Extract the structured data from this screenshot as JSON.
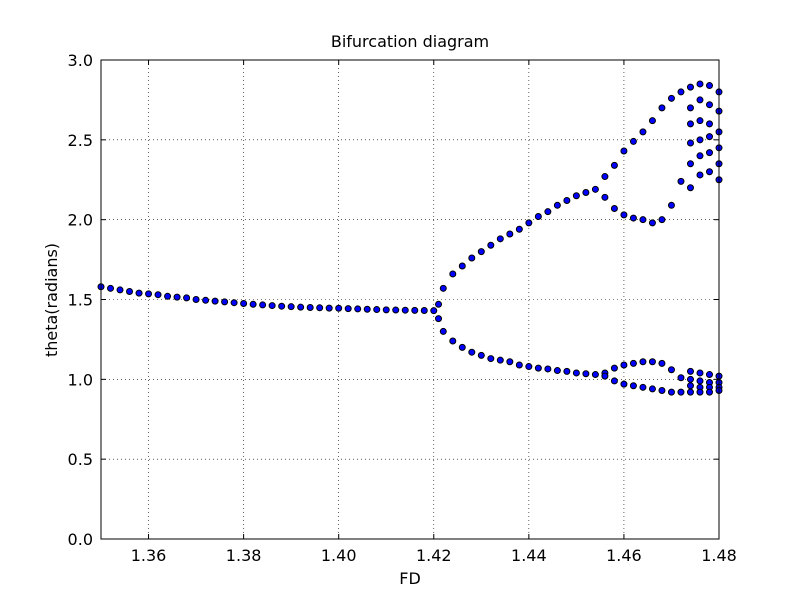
{
  "chart_data": {
    "type": "scatter",
    "title": "Bifurcation diagram",
    "x_label": "FD",
    "y_label": "theta(radians)",
    "xlim": [
      1.35,
      1.48
    ],
    "ylim": [
      0,
      3
    ],
    "xticks": [
      1.36,
      1.38,
      {
        "value": 1.4,
        "label": "1.40"
      },
      1.42,
      1.44,
      1.46,
      1.48
    ],
    "yticks": [
      {
        "value": 0,
        "label": "0.0"
      },
      0.5,
      {
        "value": 1,
        "label": "1.0"
      },
      1.5,
      {
        "value": 2,
        "label": "2.0"
      },
      2.5,
      {
        "value": 3,
        "label": "3.0"
      }
    ],
    "grid": true,
    "color": "#0000ff",
    "x": [
      1.35,
      1.352,
      1.354,
      1.356,
      1.358,
      1.36,
      1.362,
      1.364,
      1.366,
      1.368,
      1.37,
      1.372,
      1.374,
      1.376,
      1.378,
      1.38,
      1.382,
      1.384,
      1.386,
      1.388,
      1.39,
      1.392,
      1.394,
      1.396,
      1.398,
      1.4,
      1.402,
      1.404,
      1.406,
      1.408,
      1.41,
      1.412,
      1.414,
      1.416,
      1.418,
      1.42,
      1.421,
      1.421,
      1.422,
      1.424,
      1.426,
      1.428,
      1.43,
      1.432,
      1.434,
      1.436,
      1.438,
      1.44,
      1.442,
      1.444,
      1.446,
      1.448,
      1.45,
      1.452,
      1.454,
      1.422,
      1.424,
      1.426,
      1.428,
      1.43,
      1.432,
      1.434,
      1.436,
      1.438,
      1.44,
      1.442,
      1.444,
      1.446,
      1.448,
      1.45,
      1.452,
      1.454,
      1.456,
      1.458,
      1.46,
      1.462,
      1.464,
      1.466,
      1.468,
      1.47,
      1.472,
      1.456,
      1.458,
      1.46,
      1.462,
      1.464,
      1.466,
      1.468,
      1.47,
      1.472,
      1.456,
      1.458,
      1.46,
      1.462,
      1.464,
      1.466,
      1.468,
      1.47,
      1.472,
      1.456,
      1.458,
      1.46,
      1.462,
      1.464,
      1.466,
      1.468,
      1.47,
      1.472,
      1.474,
      1.474,
      1.474,
      1.474,
      1.474,
      1.474,
      1.474,
      1.474,
      1.474,
      1.474,
      1.476,
      1.476,
      1.476,
      1.476,
      1.476,
      1.476,
      1.476,
      1.476,
      1.476,
      1.476,
      1.478,
      1.478,
      1.478,
      1.478,
      1.478,
      1.478,
      1.478,
      1.478,
      1.478,
      1.478,
      1.48,
      1.48,
      1.48,
      1.48,
      1.48,
      1.48,
      1.48,
      1.48,
      1.48,
      1.48
    ],
    "values": [
      1.58,
      1.57,
      1.56,
      1.55,
      1.54,
      1.535,
      1.53,
      1.52,
      1.515,
      1.51,
      1.5,
      1.495,
      1.49,
      1.485,
      1.48,
      1.475,
      1.47,
      1.466,
      1.462,
      1.458,
      1.455,
      1.452,
      1.45,
      1.448,
      1.446,
      1.445,
      1.443,
      1.441,
      1.439,
      1.437,
      1.435,
      1.434,
      1.433,
      1.432,
      1.431,
      1.43,
      1.47,
      1.38,
      1.57,
      1.66,
      1.71,
      1.76,
      1.8,
      1.84,
      1.88,
      1.91,
      1.94,
      1.98,
      2.02,
      2.05,
      2.09,
      2.12,
      2.15,
      2.17,
      2.19,
      1.3,
      1.24,
      1.2,
      1.17,
      1.15,
      1.13,
      1.12,
      1.11,
      1.09,
      1.08,
      1.07,
      1.065,
      1.055,
      1.05,
      1.04,
      1.035,
      1.03,
      2.27,
      2.34,
      2.43,
      2.49,
      2.55,
      2.62,
      2.7,
      2.76,
      2.8,
      2.14,
      2.07,
      2.03,
      2.01,
      2.0,
      1.98,
      2.0,
      2.09,
      2.24,
      1.04,
      1.07,
      1.09,
      1.1,
      1.11,
      1.11,
      1.1,
      1.06,
      1.01,
      1.02,
      0.99,
      0.97,
      0.96,
      0.95,
      0.94,
      0.93,
      0.92,
      0.92,
      2.83,
      2.7,
      2.6,
      2.48,
      2.35,
      2.2,
      1.05,
      1.0,
      0.96,
      0.92,
      2.85,
      2.75,
      2.62,
      2.5,
      2.4,
      2.28,
      1.04,
      0.99,
      0.95,
      0.92,
      2.84,
      2.72,
      2.6,
      2.52,
      2.42,
      2.3,
      1.03,
      0.98,
      0.95,
      0.92,
      2.8,
      2.68,
      2.55,
      2.45,
      2.35,
      2.25,
      1.02,
      0.98,
      0.95,
      0.93
    ]
  }
}
